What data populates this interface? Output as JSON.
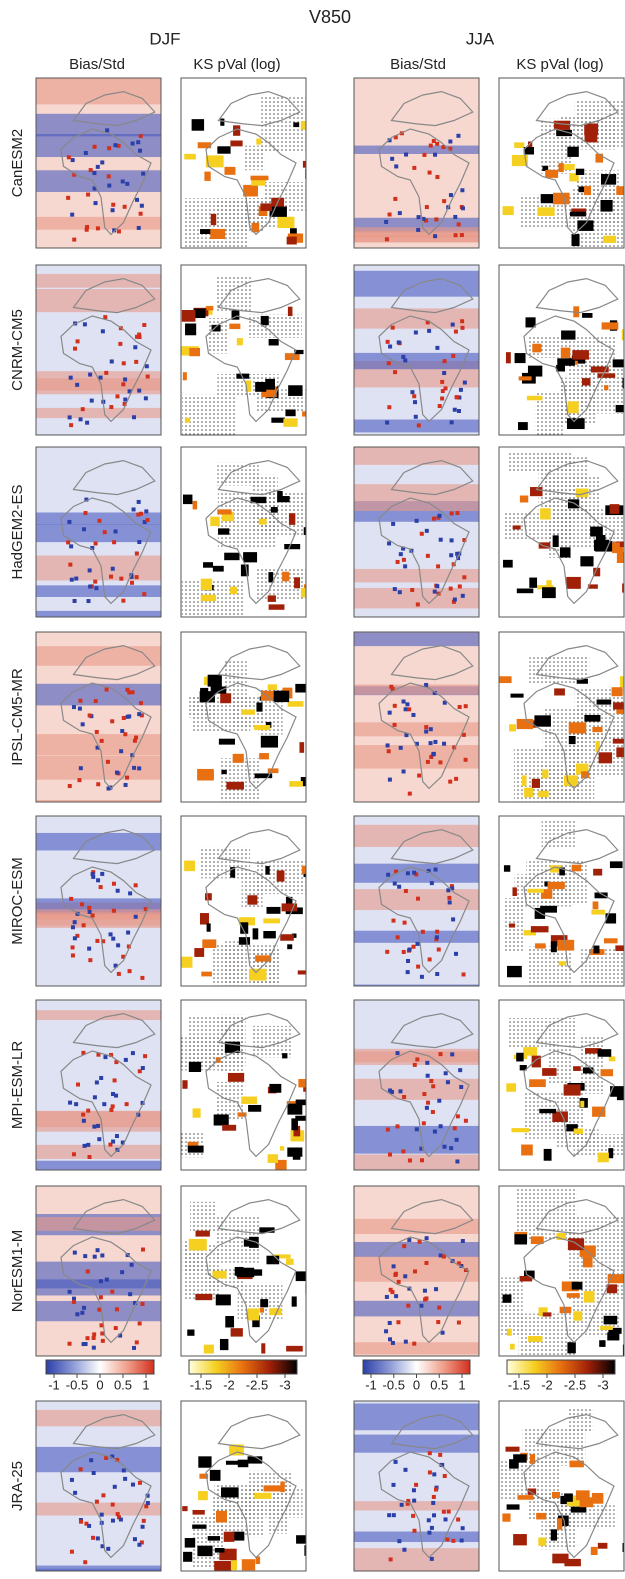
{
  "title": "V850",
  "seasons": [
    "DJF",
    "JJA"
  ],
  "columns": [
    "Bias/Std",
    "KS pVal (log)",
    "Bias/Std",
    "KS pVal (log)"
  ],
  "rows": [
    "CanESM2",
    "CNRM-CM5",
    "HadGEM2-ES",
    "IPSL-CM5-MR",
    "MIROC-ESM",
    "MPI-ESM-LR",
    "NorESM1-M",
    "JRA-25"
  ],
  "colorbars": [
    {
      "ticks": [
        -1,
        -0.5,
        0,
        0.5,
        1
      ]
    },
    {
      "ticks": [
        -1.5,
        -2,
        -2.5,
        -3
      ]
    }
  ]
}
